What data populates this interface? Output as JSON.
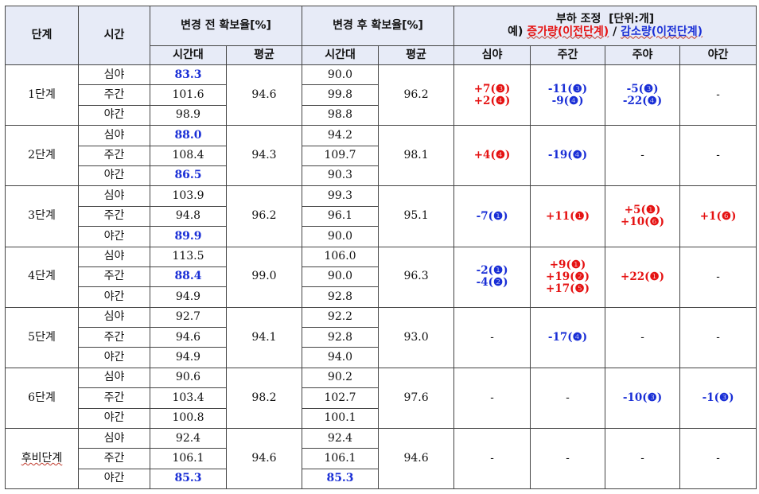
{
  "header": {
    "stage": "단계",
    "time": "시간",
    "before": "변경 전 확보율[%]",
    "after": "변경 후 확보율[%]",
    "load_title": "부하 조정",
    "load_unit": "[단위:개]",
    "example_prefix": "예)",
    "example_increase": "증가량(이전단계)",
    "example_sep": "/",
    "example_decrease": "감소량(이전단계)",
    "sub_timeslot": "시간대",
    "sub_average": "평균",
    "sub_timeslot2": "시간대",
    "sub_average2": "평균",
    "sub_late_night": "심야",
    "sub_daytime": "주간",
    "sub_day_night": "주야",
    "sub_night": "야간"
  },
  "stages": [
    {
      "name": "1단계",
      "rows": [
        {
          "period": "심야",
          "before": "83.3",
          "before_highlight": true,
          "after": "90.0",
          "after_highlight": false
        },
        {
          "period": "주간",
          "before": "101.6",
          "before_highlight": false,
          "after": "99.8",
          "after_highlight": false
        },
        {
          "period": "야간",
          "before": "98.9",
          "before_highlight": false,
          "after": "98.8",
          "after_highlight": false
        }
      ],
      "avg_before": "94.6",
      "avg_after": "96.2",
      "adj": {
        "late_night": [
          {
            "text": "+7(❸)",
            "color": "red"
          },
          {
            "text": "+2(❹)",
            "color": "red"
          }
        ],
        "daytime": [
          {
            "text": "-11(❸)",
            "color": "blue"
          },
          {
            "text": "-9(❹)",
            "color": "blue"
          }
        ],
        "day_night": [
          {
            "text": "-5(❸)",
            "color": "blue"
          },
          {
            "text": "-22(❹)",
            "color": "blue"
          }
        ],
        "night": [
          {
            "text": "-",
            "color": "none"
          }
        ]
      }
    },
    {
      "name": "2단계",
      "rows": [
        {
          "period": "심야",
          "before": "88.0",
          "before_highlight": true,
          "after": "94.2",
          "after_highlight": false
        },
        {
          "period": "주간",
          "before": "108.4",
          "before_highlight": false,
          "after": "109.7",
          "after_highlight": false
        },
        {
          "period": "야간",
          "before": "86.5",
          "before_highlight": true,
          "after": "90.3",
          "after_highlight": false
        }
      ],
      "avg_before": "94.3",
      "avg_after": "98.1",
      "adj": {
        "late_night": [
          {
            "text": "+4(❹)",
            "color": "red"
          }
        ],
        "daytime": [
          {
            "text": "-19(❹)",
            "color": "blue"
          }
        ],
        "day_night": [
          {
            "text": "-",
            "color": "none"
          }
        ],
        "night": [
          {
            "text": "-",
            "color": "none"
          }
        ]
      }
    },
    {
      "name": "3단계",
      "rows": [
        {
          "period": "심야",
          "before": "103.9",
          "before_highlight": false,
          "after": "99.3",
          "after_highlight": false
        },
        {
          "period": "주간",
          "before": "94.8",
          "before_highlight": false,
          "after": "96.1",
          "after_highlight": false
        },
        {
          "period": "야간",
          "before": "89.9",
          "before_highlight": true,
          "after": "90.0",
          "after_highlight": false
        }
      ],
      "avg_before": "96.2",
      "avg_after": "95.1",
      "adj": {
        "late_night": [
          {
            "text": "-7(❶)",
            "color": "blue"
          }
        ],
        "daytime": [
          {
            "text": "+11(❶)",
            "color": "red"
          }
        ],
        "day_night": [
          {
            "text": "+5(❶)",
            "color": "red"
          },
          {
            "text": "+10(❻)",
            "color": "red"
          }
        ],
        "night": [
          {
            "text": "+1(❻)",
            "color": "red"
          }
        ]
      }
    },
    {
      "name": "4단계",
      "rows": [
        {
          "period": "심야",
          "before": "113.5",
          "before_highlight": false,
          "after": "106.0",
          "after_highlight": false
        },
        {
          "period": "주간",
          "before": "88.4",
          "before_highlight": true,
          "after": "90.0",
          "after_highlight": false
        },
        {
          "period": "야간",
          "before": "94.9",
          "before_highlight": false,
          "after": "92.8",
          "after_highlight": false
        }
      ],
      "avg_before": "99.0",
      "avg_after": "96.3",
      "adj": {
        "late_night": [
          {
            "text": "-2(❶)",
            "color": "blue"
          },
          {
            "text": "-4(❷)",
            "color": "blue"
          }
        ],
        "daytime": [
          {
            "text": "+9(❶)",
            "color": "red"
          },
          {
            "text": "+19(❷)",
            "color": "red"
          },
          {
            "text": "+17(❺)",
            "color": "red"
          }
        ],
        "day_night": [
          {
            "text": "+22(❶)",
            "color": "red"
          }
        ],
        "night": [
          {
            "text": "-",
            "color": "none"
          }
        ]
      }
    },
    {
      "name": "5단계",
      "rows": [
        {
          "period": "심야",
          "before": "92.7",
          "before_highlight": false,
          "after": "92.2",
          "after_highlight": false
        },
        {
          "period": "주간",
          "before": "94.6",
          "before_highlight": false,
          "after": "92.8",
          "after_highlight": false
        },
        {
          "period": "야간",
          "before": "94.9",
          "before_highlight": false,
          "after": "94.0",
          "after_highlight": false
        }
      ],
      "avg_before": "94.1",
      "avg_after": "93.0",
      "adj": {
        "late_night": [
          {
            "text": "-",
            "color": "none"
          }
        ],
        "daytime": [
          {
            "text": "-17(❹)",
            "color": "blue"
          }
        ],
        "day_night": [
          {
            "text": "-",
            "color": "none"
          }
        ],
        "night": [
          {
            "text": "-",
            "color": "none"
          }
        ]
      }
    },
    {
      "name": "6단계",
      "rows": [
        {
          "period": "심야",
          "before": "90.6",
          "before_highlight": false,
          "after": "90.2",
          "after_highlight": false
        },
        {
          "period": "주간",
          "before": "103.4",
          "before_highlight": false,
          "after": "102.7",
          "after_highlight": false
        },
        {
          "period": "야간",
          "before": "100.8",
          "before_highlight": false,
          "after": "100.1",
          "after_highlight": false
        }
      ],
      "avg_before": "98.2",
      "avg_after": "97.6",
      "adj": {
        "late_night": [
          {
            "text": "-",
            "color": "none"
          }
        ],
        "daytime": [
          {
            "text": "-",
            "color": "none"
          }
        ],
        "day_night": [
          {
            "text": "-10(❸)",
            "color": "blue"
          }
        ],
        "night": [
          {
            "text": "-1(❸)",
            "color": "blue"
          }
        ]
      }
    },
    {
      "name": "후비단계",
      "name_wavy": true,
      "rows": [
        {
          "period": "심야",
          "before": "92.4",
          "before_highlight": false,
          "after": "92.4",
          "after_highlight": false
        },
        {
          "period": "주간",
          "before": "106.1",
          "before_highlight": false,
          "after": "106.1",
          "after_highlight": false
        },
        {
          "period": "야간",
          "before": "85.3",
          "before_highlight": true,
          "after": "85.3",
          "after_highlight": true
        }
      ],
      "avg_before": "94.6",
      "avg_after": "94.6",
      "adj": {
        "late_night": [
          {
            "text": "-",
            "color": "none"
          }
        ],
        "daytime": [
          {
            "text": "-",
            "color": "none"
          }
        ],
        "day_night": [
          {
            "text": "-",
            "color": "none"
          }
        ],
        "night": [
          {
            "text": "-",
            "color": "none"
          }
        ]
      }
    }
  ],
  "colors": {
    "header_bg": "#e7ebf7",
    "increase": "#e51212",
    "decrease": "#1a2fd6",
    "border": "#444444"
  }
}
